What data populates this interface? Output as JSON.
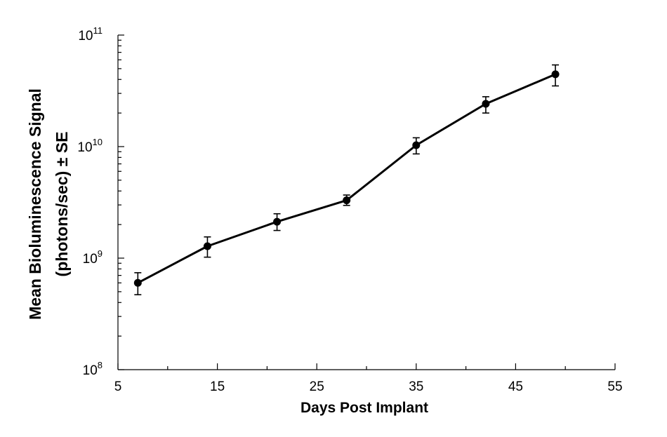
{
  "chart_data": {
    "type": "line",
    "title": "",
    "xlabel": "Days Post Implant",
    "ylabel_line1": "Mean Bioluminescence Signal",
    "ylabel_line2": "(photons/sec) ± SE",
    "x_scale": "linear",
    "y_scale": "log",
    "xlim": [
      5,
      55
    ],
    "ylim": [
      100000000,
      100000000000
    ],
    "x_ticks": [
      5,
      15,
      25,
      35,
      45,
      55
    ],
    "y_ticks": [
      {
        "value": 100000000,
        "base": "10",
        "exp": "8"
      },
      {
        "value": 1000000000,
        "base": "10",
        "exp": "9"
      },
      {
        "value": 10000000000,
        "base": "10",
        "exp": "10"
      },
      {
        "value": 100000000000,
        "base": "10",
        "exp": "11"
      }
    ],
    "grid": false,
    "legend": "none",
    "series": [
      {
        "color": "#000000",
        "x": [
          7,
          14,
          21,
          28,
          35,
          42,
          49
        ],
        "y": [
          600000000,
          1280000000,
          2120000000,
          3300000000,
          10300000000,
          24200000000,
          44500000000
        ],
        "err_low": [
          470000000,
          1020000000,
          1770000000,
          2970000000,
          8600000000,
          20000000000,
          35000000000
        ],
        "err_high": [
          740000000,
          1550000000,
          2500000000,
          3680000000,
          12000000000,
          28000000000,
          54000000000
        ]
      }
    ]
  }
}
